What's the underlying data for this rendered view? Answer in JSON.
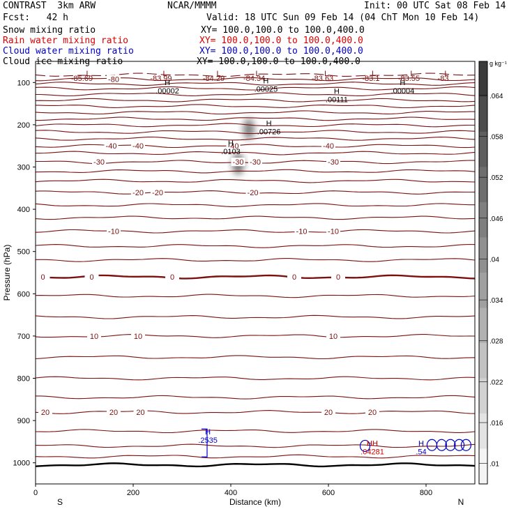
{
  "header": {
    "title_left": "CONTRAST  3km ARW",
    "title_center": "NCAR/MMMM",
    "init": "Init: 00 UTC Sat 08 Feb 14",
    "fcst": "Fcst:   42 h",
    "valid": "Valid: 18 UTC Sun 09 Feb 14 (04 ChT Mon 10 Feb 14)",
    "fields": [
      {
        "name": "Snow mixing ratio",
        "xy": "XY= 100.0,100.0 to 100.0,400.0",
        "color": "#000000"
      },
      {
        "name": "Rain water mixing ratio",
        "xy": "XY= 100.0,100.0 to 100.0,400.0",
        "color": "#dd0000"
      },
      {
        "name": "Cloud water mixing ratio",
        "xy": "XY= 100.0,100.0 to 100.0,400.0",
        "color": "#0000cc"
      },
      {
        "name": "Cloud ice mixing ratio",
        "xy": "XY= 100.0,100.0 to 100.0,400.0",
        "color": "#000000"
      }
    ]
  },
  "chart_data": {
    "type": "contour",
    "xlabel": "Distance (km)",
    "ylabel": "Pressure (hPa)",
    "xlim": [
      0,
      900
    ],
    "ylim": [
      1050,
      50
    ],
    "x_ticks": [
      0,
      200,
      400,
      600,
      800
    ],
    "y_ticks": [
      100,
      200,
      300,
      400,
      500,
      600,
      700,
      800,
      900,
      1000
    ],
    "end_labels": {
      "left": "S",
      "right": "N"
    },
    "colorbar": {
      "unit": "g kg⁻¹",
      "ticks": [
        ".01",
        ".016",
        ".022",
        ".028",
        ".034",
        ".04",
        ".046",
        ".052",
        ".058",
        ".064"
      ],
      "range": [
        0.007,
        0.069
      ]
    },
    "isotherms": [
      {
        "p": 82,
        "dash": true
      },
      {
        "p": 92,
        "label": "-80",
        "lx": [
          160
        ]
      },
      {
        "p": 103
      },
      {
        "p": 114
      },
      {
        "p": 128
      },
      {
        "p": 142
      },
      {
        "p": 156
      },
      {
        "p": 171
      },
      {
        "p": 186
      },
      {
        "p": 201
      },
      {
        "p": 217
      },
      {
        "p": 233
      },
      {
        "p": 250,
        "label": "-40",
        "lx": [
          155,
          210,
          405,
          600
        ]
      },
      {
        "p": 267
      },
      {
        "p": 288,
        "label": "-30",
        "lx": [
          130,
          415,
          450,
          610
        ]
      },
      {
        "p": 310
      },
      {
        "p": 333
      },
      {
        "p": 360,
        "label": "-20",
        "lx": [
          210,
          250,
          445
        ]
      },
      {
        "p": 390
      },
      {
        "p": 420
      },
      {
        "p": 452,
        "label": "-10",
        "lx": [
          160,
          545,
          610
        ]
      },
      {
        "p": 487
      },
      {
        "p": 520
      },
      {
        "p": 560,
        "label": "0",
        "lx": [
          15,
          115,
          280,
          530,
          620
        ],
        "bold": true
      },
      {
        "p": 605
      },
      {
        "p": 655
      },
      {
        "p": 700,
        "label": "10",
        "lx": [
          120,
          210,
          610
        ]
      },
      {
        "p": 750
      },
      {
        "p": 800
      },
      {
        "p": 845
      },
      {
        "p": 880,
        "label": "20",
        "lx": [
          20,
          160,
          215,
          600,
          690
        ]
      },
      {
        "p": 925
      },
      {
        "p": 960
      },
      {
        "p": 985
      },
      {
        "p": 1005,
        "bold": true
      }
    ],
    "top_extrema": [
      {
        "letter": "L",
        "x": 108,
        "p": 78,
        "value": "-85.69",
        "vx": 95,
        "vp": 90
      },
      {
        "letter": "L",
        "x": 265,
        "p": 78,
        "value": "-83.99",
        "vx": 257,
        "vp": 90
      },
      {
        "letter": "L",
        "x": 375,
        "p": 78,
        "value": "-84.29",
        "vx": 365,
        "vp": 90
      },
      {
        "letter": "L",
        "x": 455,
        "p": 78,
        "value": "-84.34",
        "vx": 448,
        "vp": 90
      },
      {
        "letter": "L",
        "x": 596,
        "p": 78,
        "value": "-83.63",
        "vx": 588,
        "vp": 90
      },
      {
        "letter": "L",
        "x": 693,
        "p": 78,
        "value": "-83.1",
        "vx": 687,
        "vp": 90
      },
      {
        "letter": "L",
        "x": 772,
        "p": 78,
        "value": "-83.55",
        "vx": 765,
        "vp": 90
      },
      {
        "letter": "L",
        "x": 842,
        "p": 78,
        "value": "-83",
        "vx": 835,
        "vp": 90
      }
    ],
    "markers": [
      {
        "letter": "H",
        "x": 270,
        "p": 106,
        "value": ".00002",
        "color": "#000000"
      },
      {
        "letter": "H",
        "x": 472,
        "p": 102,
        "value": ".00025",
        "color": "#000000"
      },
      {
        "letter": "H",
        "x": 617,
        "p": 127,
        "value": ".00111",
        "color": "#000000"
      },
      {
        "letter": "H",
        "x": 752,
        "p": 106,
        "value": ".00004",
        "color": "#000000"
      },
      {
        "letter": "H",
        "x": 478,
        "p": 203,
        "value": ".00726",
        "color": "#000000"
      },
      {
        "letter": "H",
        "x": 400,
        "p": 250,
        "value": ".0103",
        "color": "#000000"
      },
      {
        "letter": "H",
        "x": 353,
        "p": 933,
        "value": ".2535",
        "color": "#0000cc"
      },
      {
        "letter": "HH",
        "x": 690,
        "p": 960,
        "value": ".04281",
        "color": "#cc0000"
      },
      {
        "letter": "H",
        "x": 790,
        "p": 960,
        "value": ".54",
        "color": "#0000cc"
      }
    ],
    "shaded": [
      {
        "x": 437,
        "p": 210,
        "value": 0.046
      },
      {
        "x": 415,
        "p": 293,
        "value": 0.052
      }
    ]
  }
}
